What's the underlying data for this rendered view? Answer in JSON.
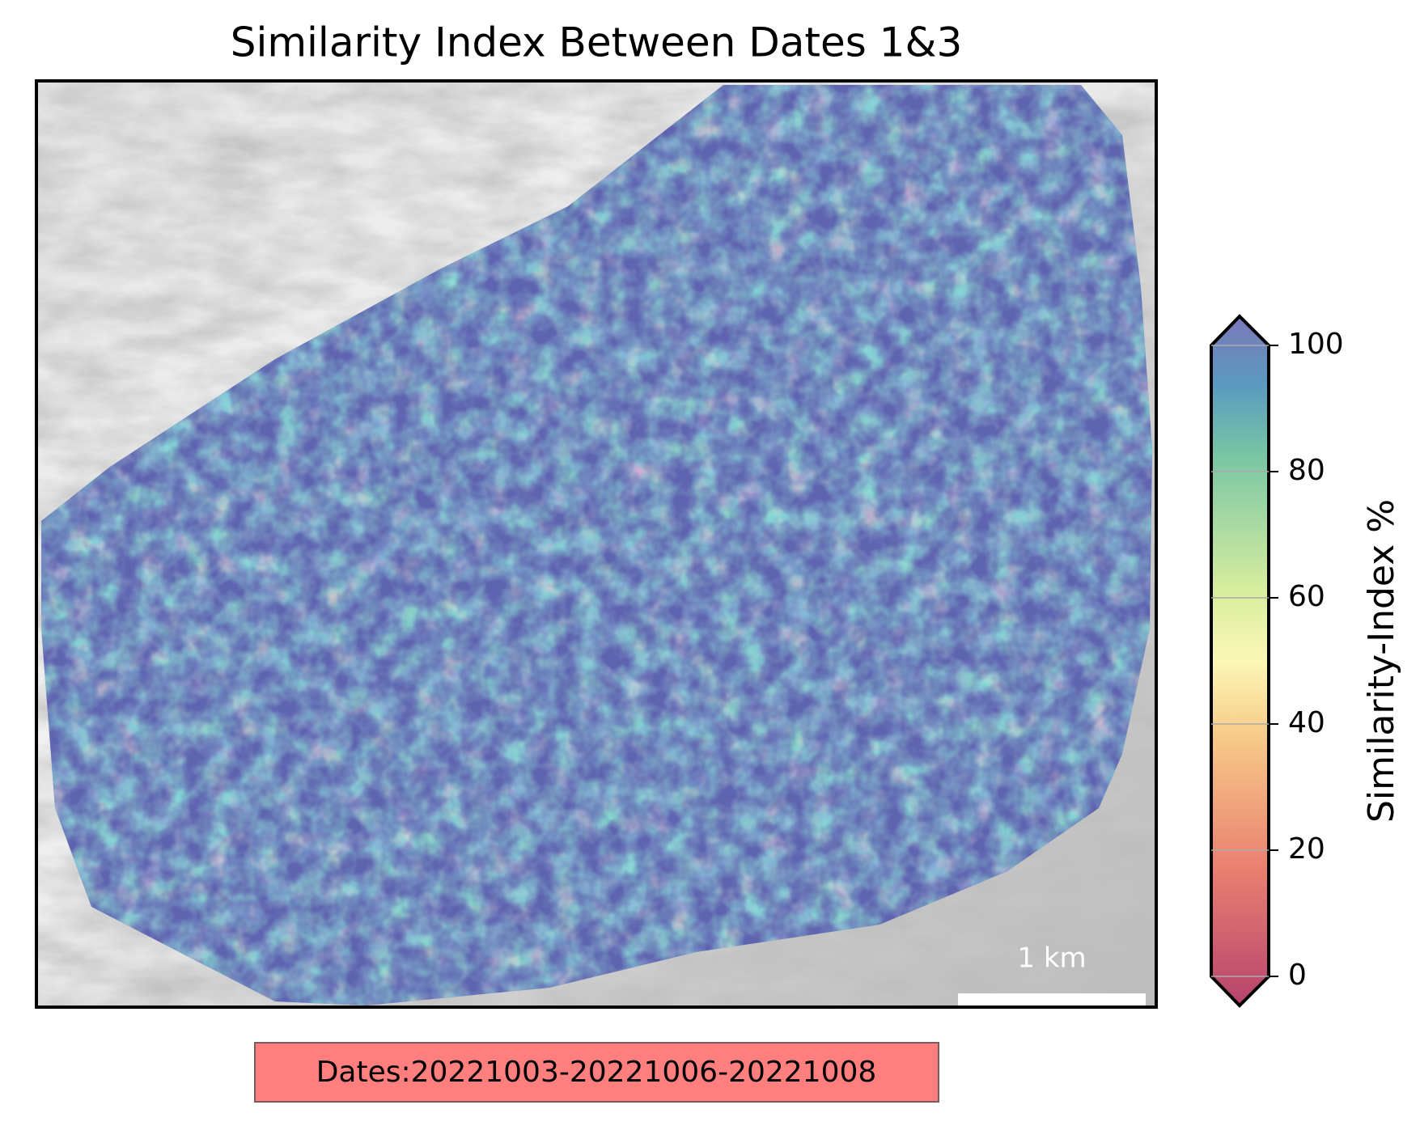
{
  "title": "Similarity Index Between Dates 1&3",
  "colorbar": {
    "label": "Similarity-Index %",
    "lim": [
      0,
      100
    ],
    "ticks": [
      0,
      20,
      40,
      60,
      80,
      100
    ]
  },
  "scalebar": {
    "label": "1 km"
  },
  "annotation": "Dates:20221003-20221006-20221008"
}
